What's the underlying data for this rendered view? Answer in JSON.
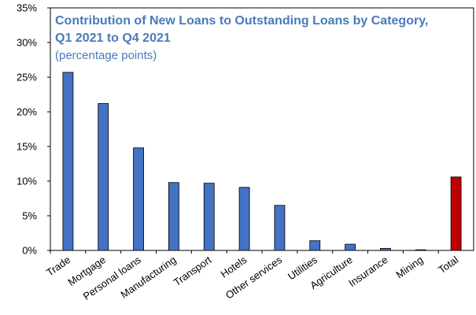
{
  "chart_data": {
    "type": "bar",
    "title_lines": [
      "Contribution of New Loans to Outstanding Loans by Category,",
      "Q1 2021 to Q4 2021"
    ],
    "subtitle": "(percentage points)",
    "categories": [
      "Trade",
      "Mortgage",
      "Personal loans",
      "Manufacturing",
      "Transport",
      "Hotels",
      "Other services",
      "Utilities",
      "Agriculture",
      "Insurance",
      "Mining",
      "Total"
    ],
    "values": [
      25.7,
      21.2,
      14.8,
      9.8,
      9.7,
      9.1,
      6.5,
      1.4,
      0.9,
      0.3,
      0.1,
      10.6
    ],
    "ylim": [
      0,
      35
    ],
    "yticks": [
      0,
      5,
      10,
      15,
      20,
      25,
      30,
      35
    ],
    "ytick_labels": [
      "0%",
      "5%",
      "10%",
      "15%",
      "20%",
      "25%",
      "30%",
      "35%"
    ],
    "xlabel": "",
    "ylabel": "",
    "grid": false,
    "colors": {
      "bar": "#4472c4",
      "highlight_bar": "#c00000",
      "title": "#4a7ab8",
      "axis": "#000000"
    },
    "highlight_category": "Total"
  }
}
